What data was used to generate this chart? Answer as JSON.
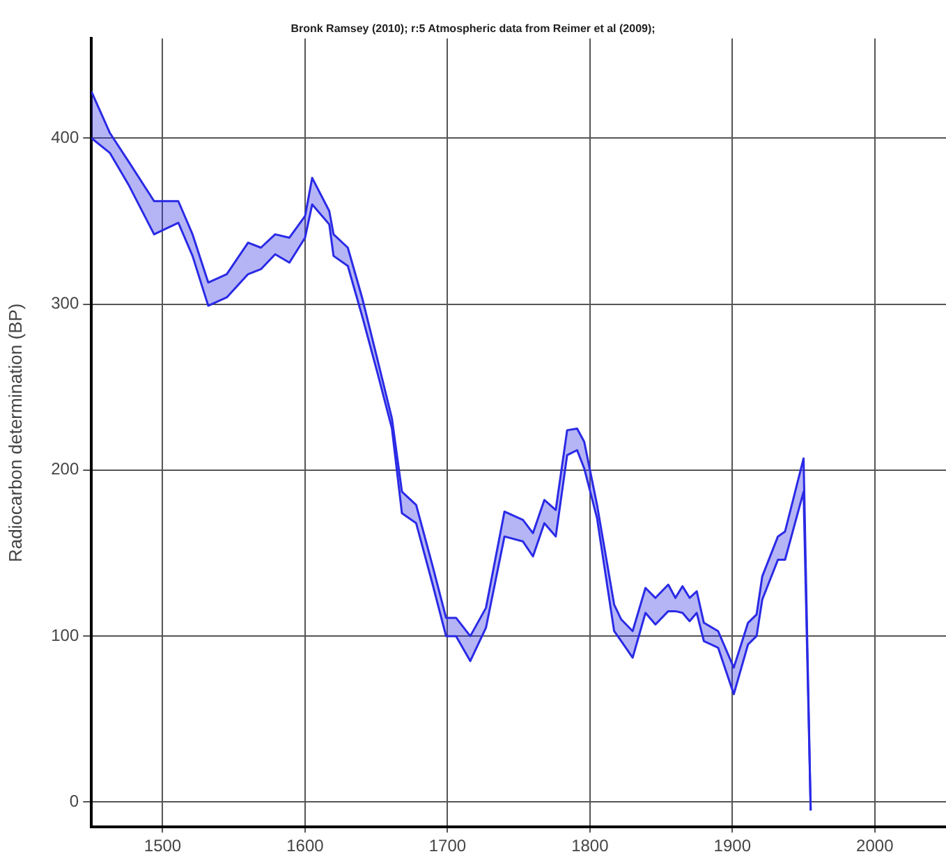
{
  "chart_data": {
    "type": "line",
    "title": "Bronk Ramsey (2010); r:5 Atmospheric data from Reimer et al (2009);",
    "ylabel": "Radiocarbon determination (BP)",
    "x": [
      1450,
      1463,
      1476,
      1494,
      1511,
      1521,
      1532,
      1545,
      1560,
      1569,
      1579,
      1589,
      1600,
      1605,
      1617,
      1620,
      1630,
      1640,
      1651,
      1661,
      1668,
      1678,
      1689,
      1699,
      1706,
      1716,
      1727,
      1740,
      1753,
      1760,
      1768,
      1776,
      1784,
      1791,
      1796,
      1805,
      1817,
      1822,
      1830,
      1839,
      1846,
      1855,
      1860,
      1865,
      1870,
      1875,
      1880,
      1890,
      1901,
      1911,
      1917,
      1921,
      1932,
      1937,
      1950,
      1955
    ],
    "series": [
      {
        "color": "#2a2ae6",
        "values": [
          428,
          403,
          386,
          362,
          362,
          342,
          313,
          318,
          337,
          334,
          342,
          340,
          353,
          376,
          356,
          342,
          334,
          304,
          266,
          231,
          187,
          179,
          144,
          111,
          111,
          100,
          117,
          175,
          170,
          162,
          182,
          176,
          224,
          225,
          217,
          179,
          119,
          110,
          103,
          129,
          123,
          131,
          123,
          130,
          123,
          127,
          108,
          103,
          81,
          108,
          113,
          136,
          160,
          163,
          207,
          -5
        ]
      },
      {
        "color": "#2a2ae6",
        "values": [
          400,
          391,
          372,
          342,
          349,
          329,
          299,
          304,
          318,
          321,
          330,
          325,
          340,
          360,
          348,
          329,
          323,
          293,
          258,
          225,
          174,
          168,
          133,
          100,
          100,
          85,
          105,
          160,
          157,
          148,
          168,
          160,
          209,
          212,
          201,
          171,
          103,
          97,
          87,
          114,
          107,
          115,
          115,
          114,
          109,
          114,
          97,
          93,
          65,
          95,
          100,
          122,
          146,
          146,
          187,
          -5
        ],
        "lower": [
          400,
          391,
          372,
          342,
          349,
          329,
          299,
          304,
          318,
          321,
          330,
          325,
          340,
          360,
          348,
          329,
          323,
          293,
          258,
          225,
          174,
          168,
          133,
          100,
          100,
          85,
          105,
          160,
          157,
          148,
          168,
          160,
          209,
          212,
          201,
          171,
          103,
          97,
          87,
          114,
          107,
          115,
          115,
          114,
          109,
          114,
          97,
          93,
          65,
          95,
          100,
          122,
          146,
          146,
          187,
          -5
        ],
        "upper": [
          428,
          403,
          386,
          362,
          362,
          342,
          313,
          318,
          337,
          334,
          342,
          340,
          353,
          376,
          356,
          342,
          334,
          304,
          266,
          231,
          187,
          179,
          144,
          111,
          111,
          100,
          117,
          175,
          170,
          162,
          182,
          176,
          224,
          225,
          217,
          179,
          119,
          110,
          103,
          129,
          123,
          131,
          123,
          130,
          123,
          127,
          108,
          103,
          81,
          108,
          113,
          136,
          160,
          163,
          207,
          -5
        ]
      }
    ],
    "xlim": [
      1450,
      2050
    ],
    "xticks": [
      1500,
      1600,
      1700,
      1800,
      1900,
      2000
    ],
    "ylim": [
      -15,
      460
    ],
    "yticks": [
      0,
      100,
      200,
      300,
      400
    ],
    "grid": true,
    "legend": false,
    "marker": "none",
    "line_style": "solid"
  }
}
